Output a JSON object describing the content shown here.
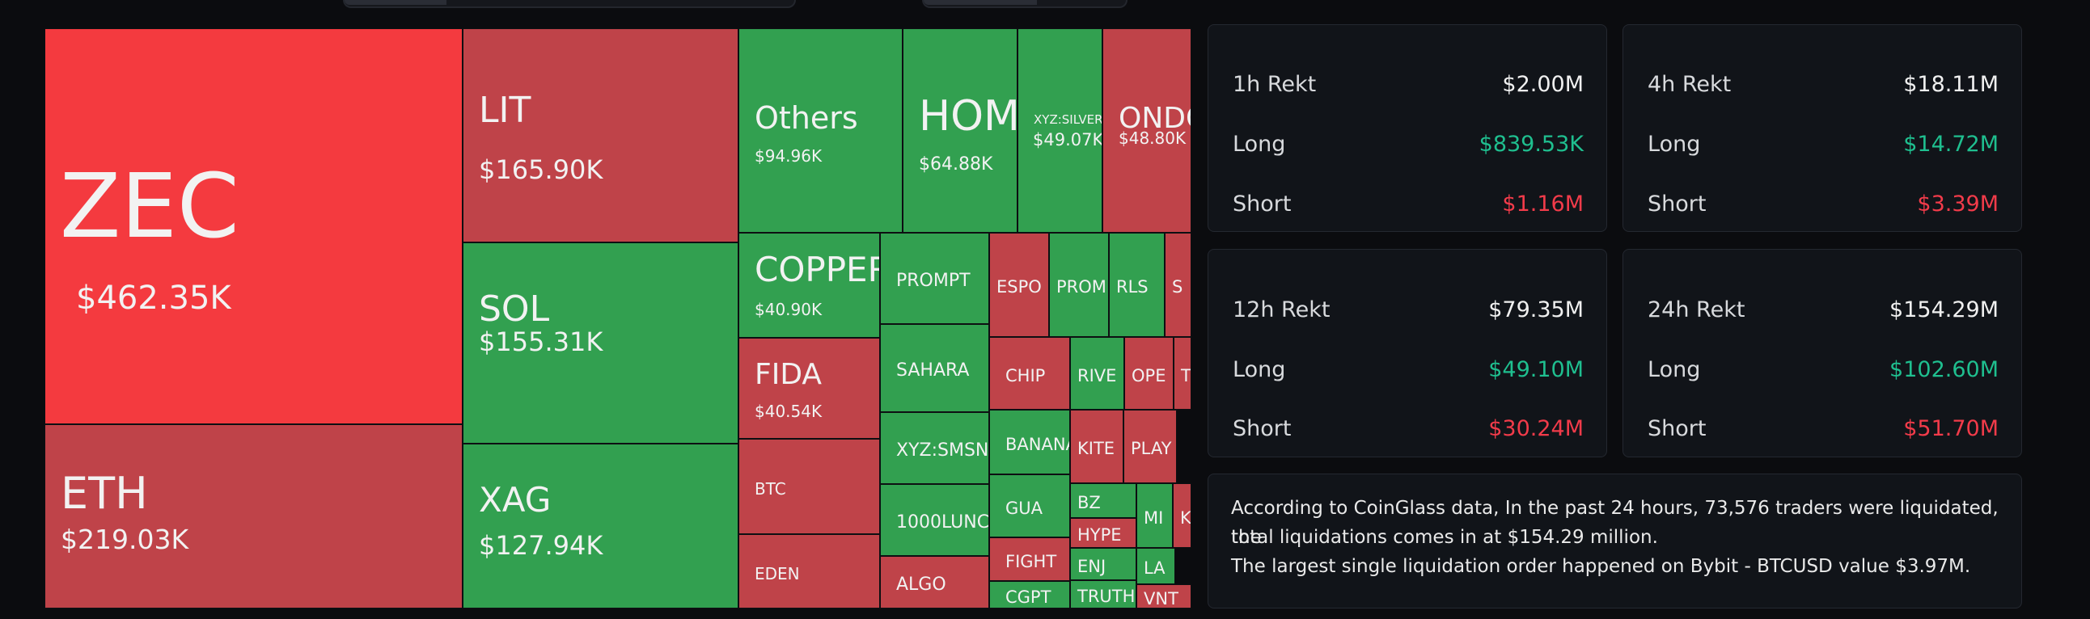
{
  "colors": {
    "up": "#32a050",
    "down_strong": "#f43a3f",
    "down": "#bf4349",
    "text": "#f2f2f2",
    "positive": "#1fbf8f",
    "negative": "#f23b4a"
  },
  "treemap": {
    "tiles": [
      {
        "symbol": "ZEC",
        "value": "$462.35K",
        "color": "down_strong"
      },
      {
        "symbol": "ETH",
        "value": "$219.03K",
        "color": "down"
      },
      {
        "symbol": "LIT",
        "value": "$165.90K",
        "color": "down"
      },
      {
        "symbol": "SOL",
        "value": "$155.31K",
        "color": "up"
      },
      {
        "symbol": "XAG",
        "value": "$127.94K",
        "color": "up"
      },
      {
        "symbol": "Others",
        "value": "$94.96K",
        "color": "up"
      },
      {
        "symbol": "HOM",
        "value": "$64.88K",
        "color": "up"
      },
      {
        "symbol": "XYZ:SILVER",
        "value": "$49.07K",
        "color": "up"
      },
      {
        "symbol": "ONDO",
        "value": "$48.80K",
        "color": "down"
      },
      {
        "symbol": "COPPER",
        "value": "$40.90K",
        "color": "up"
      },
      {
        "symbol": "FIDA",
        "value": "$40.54K",
        "color": "down"
      },
      {
        "symbol": "BTC",
        "value": "",
        "color": "down"
      },
      {
        "symbol": "EDEN",
        "value": "",
        "color": "down"
      },
      {
        "symbol": "PROMPT",
        "value": "",
        "color": "up"
      },
      {
        "symbol": "SAHARA",
        "value": "",
        "color": "up"
      },
      {
        "symbol": "XYZ:SMSN",
        "value": "",
        "color": "up"
      },
      {
        "symbol": "1000LUNC",
        "value": "",
        "color": "up"
      },
      {
        "symbol": "ALGO",
        "value": "",
        "color": "down"
      },
      {
        "symbol": "ESPO",
        "value": "",
        "color": "down"
      },
      {
        "symbol": "PROM",
        "value": "",
        "color": "up"
      },
      {
        "symbol": "RLS",
        "value": "",
        "color": "up"
      },
      {
        "symbol": "S",
        "value": "",
        "color": "down"
      },
      {
        "symbol": "CHIP",
        "value": "",
        "color": "down"
      },
      {
        "symbol": "RIVE",
        "value": "",
        "color": "up"
      },
      {
        "symbol": "OPE",
        "value": "",
        "color": "down"
      },
      {
        "symbol": "T",
        "value": "",
        "color": "down"
      },
      {
        "symbol": "BANANA",
        "value": "",
        "color": "up"
      },
      {
        "symbol": "KITE",
        "value": "",
        "color": "down"
      },
      {
        "symbol": "PLAY",
        "value": "",
        "color": "down"
      },
      {
        "symbol": "GUA",
        "value": "",
        "color": "up"
      },
      {
        "symbol": "BZ",
        "value": "",
        "color": "up"
      },
      {
        "symbol": "MI",
        "value": "",
        "color": "up"
      },
      {
        "symbol": "K",
        "value": "",
        "color": "down"
      },
      {
        "symbol": "FIGHT",
        "value": "",
        "color": "down"
      },
      {
        "symbol": "HYPE",
        "value": "",
        "color": "down"
      },
      {
        "symbol": "LA",
        "value": "",
        "color": "up"
      },
      {
        "symbol": "ENJ",
        "value": "",
        "color": "up"
      },
      {
        "symbol": "CGPT",
        "value": "",
        "color": "up"
      },
      {
        "symbol": "TRUTH",
        "value": "",
        "color": "up"
      },
      {
        "symbol": "VNT",
        "value": "",
        "color": "down"
      }
    ]
  },
  "stats": [
    {
      "period": "1h Rekt",
      "total": "$2.00M",
      "long_label": "Long",
      "long": "$839.53K",
      "short_label": "Short",
      "short": "$1.16M"
    },
    {
      "period": "4h Rekt",
      "total": "$18.11M",
      "long_label": "Long",
      "long": "$14.72M",
      "short_label": "Short",
      "short": "$3.39M"
    },
    {
      "period": "12h Rekt",
      "total": "$79.35M",
      "long_label": "Long",
      "long": "$49.10M",
      "short_label": "Short",
      "short": "$30.24M"
    },
    {
      "period": "24h Rekt",
      "total": "$154.29M",
      "long_label": "Long",
      "long": "$102.60M",
      "short_label": "Short",
      "short": "$51.70M"
    }
  ],
  "summary": {
    "line1": "According to CoinGlass data, In the past 24 hours, 73,576 traders were liquidated, the",
    "line2": "total liquidations comes in at $154.29 million.",
    "line3": "The largest single liquidation order happened on Bybit - BTCUSD value $3.97M."
  }
}
